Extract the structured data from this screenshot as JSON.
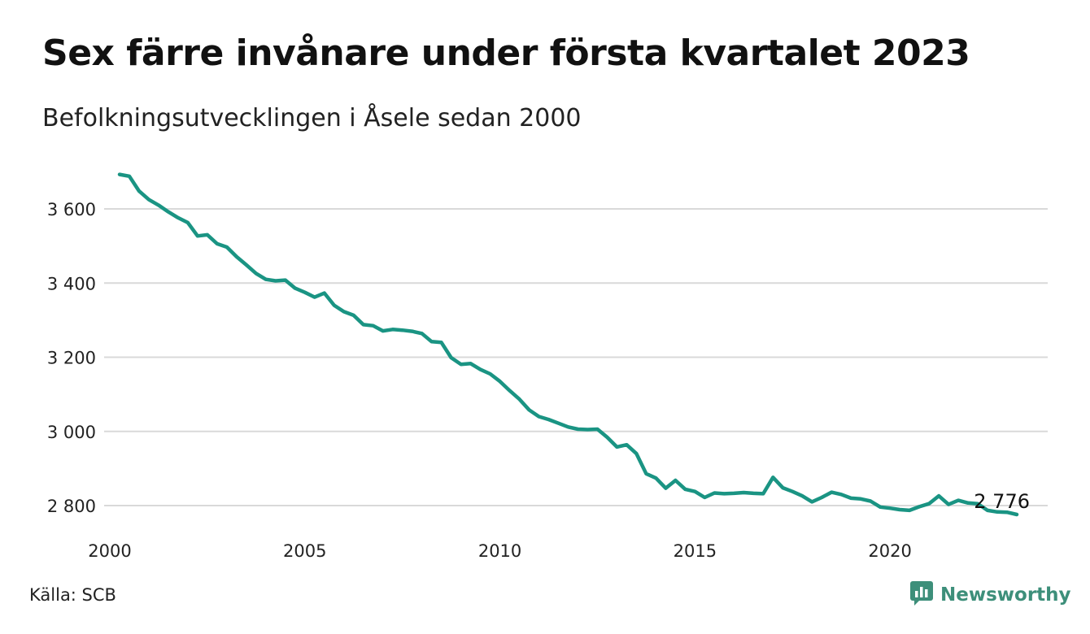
{
  "header": {
    "title": "Sex färre invånare under första kvartalet 2023",
    "subtitle": "Befolkningsutvecklingen i Åsele sedan 2000"
  },
  "footer": {
    "source": "Källa: SCB",
    "brand": "Newsworthy"
  },
  "colors": {
    "line": "#1a9483",
    "grid": "#d9d9d9",
    "brand": "#3d8f7a"
  },
  "icons": {
    "brand_logo": "newsworthy-logo-icon"
  },
  "chart_data": {
    "type": "line",
    "title": "Sex färre invånare under första kvartalet 2023",
    "subtitle": "Befolkningsutvecklingen i Åsele sedan 2000",
    "xlabel": "",
    "ylabel": "",
    "xlim": [
      2000,
      2023.25
    ],
    "ylim": [
      2780,
      3720
    ],
    "grid": true,
    "legend": "none",
    "x_ticks": [
      2000,
      2005,
      2010,
      2015,
      2020
    ],
    "x_tick_labels": [
      "2000",
      "2005",
      "2010",
      "2015",
      "2020"
    ],
    "y_ticks": [
      2800,
      3000,
      3200,
      3400,
      3600
    ],
    "y_tick_labels": [
      "2 800",
      "3 000",
      "3 200",
      "3 400",
      "3 600"
    ],
    "end_label": "2 776",
    "series": [
      {
        "x": [
          2000.25,
          2000.5,
          2000.75,
          2001.0,
          2001.25,
          2001.5,
          2001.75,
          2002.0,
          2002.25,
          2002.5,
          2002.75,
          2003.0,
          2003.25,
          2003.5,
          2003.75,
          2004.0,
          2004.25,
          2004.5,
          2004.75,
          2005.0,
          2005.25,
          2005.5,
          2005.75,
          2006.0,
          2006.25,
          2006.5,
          2006.75,
          2007.0,
          2007.25,
          2007.5,
          2007.75,
          2008.0,
          2008.25,
          2008.5,
          2008.75,
          2009.0,
          2009.25,
          2009.5,
          2009.75,
          2010.0,
          2010.25,
          2010.5,
          2010.75,
          2011.0,
          2011.25,
          2011.5,
          2011.75,
          2012.0,
          2012.25,
          2012.5,
          2012.75,
          2013.0,
          2013.25,
          2013.5,
          2013.75,
          2014.0,
          2014.25,
          2014.5,
          2014.75,
          2015.0,
          2015.25,
          2015.5,
          2015.75,
          2016.0,
          2016.25,
          2016.5,
          2016.75,
          2017.0,
          2017.25,
          2017.5,
          2017.75,
          2018.0,
          2018.25,
          2018.5,
          2018.75,
          2019.0,
          2019.25,
          2019.5,
          2019.75,
          2020.0,
          2020.25,
          2020.5,
          2020.75,
          2021.0,
          2021.25,
          2021.5,
          2021.75,
          2022.0,
          2022.25,
          2022.5,
          2022.75,
          2023.0,
          2023.25
        ],
        "values": [
          3693,
          3688,
          3648,
          3625,
          3610,
          3592,
          3576,
          3563,
          3527,
          3530,
          3506,
          3497,
          3471,
          3449,
          3426,
          3410,
          3406,
          3408,
          3386,
          3375,
          3362,
          3373,
          3340,
          3323,
          3313,
          3288,
          3285,
          3271,
          3275,
          3273,
          3270,
          3264,
          3242,
          3240,
          3199,
          3181,
          3183,
          3167,
          3155,
          3135,
          3110,
          3087,
          3058,
          3040,
          3032,
          3022,
          3012,
          3006,
          3005,
          3006,
          2984,
          2958,
          2964,
          2940,
          2886,
          2874,
          2847,
          2868,
          2844,
          2838,
          2822,
          2834,
          2832,
          2833,
          2835,
          2833,
          2832,
          2876,
          2848,
          2838,
          2826,
          2810,
          2822,
          2836,
          2830,
          2820,
          2818,
          2812,
          2796,
          2793,
          2789,
          2787,
          2797,
          2805,
          2826,
          2803,
          2814,
          2807,
          2805,
          2787,
          2783,
          2782,
          2776
        ]
      }
    ]
  }
}
